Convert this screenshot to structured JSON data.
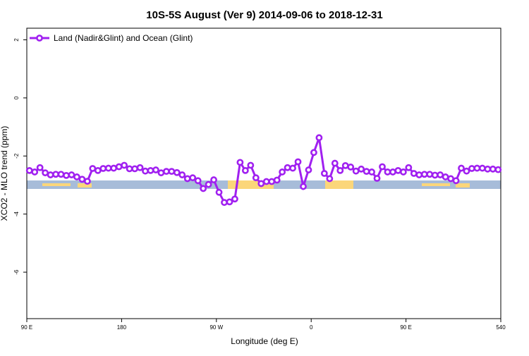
{
  "chart_data": {
    "type": "line",
    "title": "10S-5S August (Ver 9)   2014-09-06 to 2018-12-31",
    "x_label": "Longitude (deg E)",
    "y_label": "XCO2 - MLO trend (ppm)",
    "xlim": [
      90,
      540
    ],
    "xticks": [
      {
        "value": 90,
        "label": "90 E"
      },
      180,
      {
        "value": 270,
        "label": "90 W"
      },
      {
        "value": 360,
        "label": "0"
      },
      {
        "value": 450,
        "label": "90 E"
      },
      540
    ],
    "ylim": [
      -7.6,
      2.4
    ],
    "yticks": [
      -6,
      -4,
      -2,
      0,
      2
    ],
    "legend": "top-left",
    "series": [
      {
        "name": "Land (Nadir&Glint) and Ocean (Glint)",
        "color": "#a020f0",
        "x": [
          92.5,
          97.5,
          102.5,
          107.5,
          112.5,
          117.5,
          122.5,
          127.5,
          132.5,
          137.5,
          142.5,
          147.5,
          152.5,
          157.5,
          162.5,
          167.5,
          172.5,
          177.5,
          182.5,
          187.5,
          192.5,
          197.5,
          202.5,
          207.5,
          212.5,
          217.5,
          222.5,
          227.5,
          232.5,
          237.5,
          242.5,
          247.5,
          252.5,
          257.5,
          262.5,
          267.5,
          272.5,
          277.5,
          282.5,
          287.5,
          292.5,
          297.5,
          302.5,
          307.5,
          312.5,
          317.5,
          322.5,
          327.5,
          332.5,
          337.5,
          342.5,
          347.5,
          352.5,
          357.5,
          362.5,
          367.5,
          372.5,
          377.5,
          382.5,
          387.5,
          392.5,
          397.5,
          402.5,
          407.5,
          412.5,
          417.5,
          422.5,
          427.5,
          432.5,
          437.5,
          442.5,
          447.5,
          452.5,
          457.5,
          462.5,
          467.5,
          472.5,
          477.5,
          482.5,
          487.5,
          492.5,
          497.5,
          502.5,
          507.5,
          512.5,
          517.5,
          522.5,
          527.5,
          532.5,
          537.5
        ],
        "values": [
          -2.5,
          -2.55,
          -2.4,
          -2.58,
          -2.65,
          -2.63,
          -2.63,
          -2.67,
          -2.65,
          -2.72,
          -2.8,
          -2.87,
          -2.43,
          -2.5,
          -2.43,
          -2.42,
          -2.42,
          -2.37,
          -2.32,
          -2.44,
          -2.44,
          -2.4,
          -2.52,
          -2.5,
          -2.48,
          -2.58,
          -2.53,
          -2.53,
          -2.57,
          -2.65,
          -2.78,
          -2.75,
          -2.85,
          -3.12,
          -2.98,
          -2.82,
          -3.25,
          -3.6,
          -3.58,
          -3.48,
          -2.22,
          -2.5,
          -2.32,
          -2.75,
          -2.95,
          -2.88,
          -2.88,
          -2.83,
          -2.55,
          -2.4,
          -2.42,
          -2.2,
          -3.05,
          -2.48,
          -1.88,
          -1.37,
          -2.6,
          -2.78,
          -2.25,
          -2.5,
          -2.33,
          -2.38,
          -2.52,
          -2.45,
          -2.53,
          -2.55,
          -2.77,
          -2.37,
          -2.55,
          -2.55,
          -2.5,
          -2.55,
          -2.4,
          -2.6,
          -2.65,
          -2.63,
          -2.63,
          -2.66,
          -2.65,
          -2.72,
          -2.78,
          -2.85,
          -2.42,
          -2.52,
          -2.43,
          -2.42,
          -2.42,
          -2.45,
          -2.45,
          -2.47
        ]
      }
    ]
  }
}
